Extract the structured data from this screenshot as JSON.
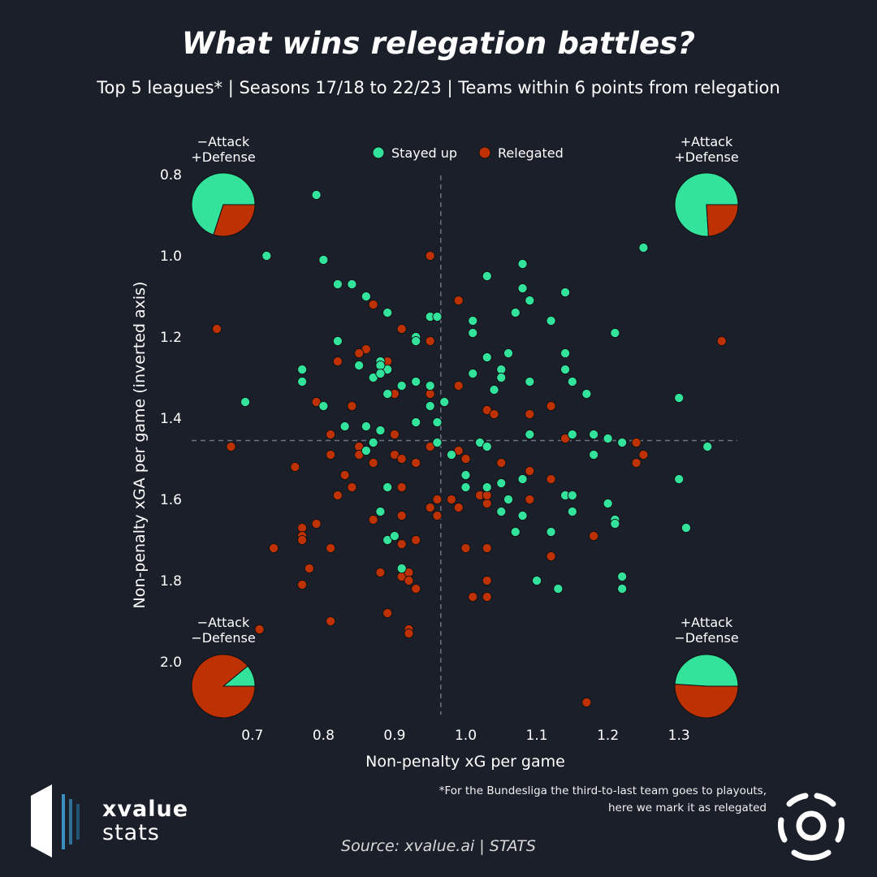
{
  "title": "What wins relegation battles?",
  "subtitle": "Top 5 leagues* | Seasons 17/18 to 22/23 | Teams within 6 points from relegation",
  "footnote_line1": "*For the Bundesliga the third-to-last team goes to playouts,",
  "footnote_line2": "here we mark it as relegated",
  "source": "Source: xvalue.ai | STATS",
  "brand": {
    "line1": "xvalue",
    "line2": "stats"
  },
  "colors": {
    "stayed": "#34e39b",
    "relegated": "#bd3102",
    "background": "#1a1f29"
  },
  "chart_data": {
    "type": "scatter",
    "xlabel": "Non-penalty xG per game",
    "ylabel": "Non-penalty xGA per game (inverted axis)",
    "xlim": [
      0.61,
      1.39
    ],
    "ylim": [
      2.15,
      0.78
    ],
    "y_inverted": true,
    "xticks": [
      0.7,
      0.8,
      0.9,
      1.0,
      1.1,
      1.2,
      1.3
    ],
    "xtick_labels": [
      "0.7",
      "0.8",
      "0.9",
      "1.0",
      "1.1",
      "1.2",
      "1.3"
    ],
    "yticks": [
      0.8,
      1.0,
      1.2,
      1.4,
      1.6,
      1.8,
      2.0
    ],
    "ytick_labels": [
      "0.8",
      "1.0",
      "1.2",
      "1.4",
      "1.6",
      "1.8",
      "2.0"
    ],
    "reference_lines": {
      "x": 0.965,
      "y": 1.455
    },
    "legend_position": "top-center",
    "series": [
      {
        "name": "Stayed up",
        "color": "#34e39b",
        "points": [
          [
            0.79,
            0.85
          ],
          [
            0.72,
            1.0
          ],
          [
            0.8,
            1.01
          ],
          [
            0.82,
            1.07
          ],
          [
            0.84,
            1.07
          ],
          [
            0.86,
            1.1
          ],
          [
            0.89,
            1.14
          ],
          [
            0.95,
            1.15
          ],
          [
            0.96,
            1.15
          ],
          [
            1.01,
            1.16
          ],
          [
            1.01,
            1.19
          ],
          [
            0.93,
            1.2
          ],
          [
            0.93,
            1.21
          ],
          [
            0.82,
            1.21
          ],
          [
            0.77,
            1.28
          ],
          [
            0.77,
            1.31
          ],
          [
            0.88,
            1.26
          ],
          [
            0.89,
            1.28
          ],
          [
            0.88,
            1.27
          ],
          [
            0.87,
            1.3
          ],
          [
            0.85,
            1.27
          ],
          [
            0.88,
            1.29
          ],
          [
            0.91,
            1.32
          ],
          [
            0.93,
            1.31
          ],
          [
            0.95,
            1.32
          ],
          [
            0.97,
            1.36
          ],
          [
            0.95,
            1.37
          ],
          [
            0.93,
            1.41
          ],
          [
            0.96,
            1.41
          ],
          [
            0.96,
            1.46
          ],
          [
            0.98,
            1.49
          ],
          [
            0.89,
            1.34
          ],
          [
            0.8,
            1.37
          ],
          [
            0.69,
            1.36
          ],
          [
            0.83,
            1.42
          ],
          [
            0.86,
            1.42
          ],
          [
            0.88,
            1.43
          ],
          [
            0.86,
            1.48
          ],
          [
            0.87,
            1.46
          ],
          [
            1.01,
            1.29
          ],
          [
            1.03,
            1.25
          ],
          [
            1.04,
            1.33
          ],
          [
            1.05,
            1.28
          ],
          [
            1.05,
            1.3
          ],
          [
            1.06,
            1.24
          ],
          [
            1.03,
            1.05
          ],
          [
            1.08,
            1.02
          ],
          [
            1.08,
            1.08
          ],
          [
            1.09,
            1.11
          ],
          [
            1.07,
            1.14
          ],
          [
            1.12,
            1.16
          ],
          [
            1.14,
            1.09
          ],
          [
            1.14,
            1.24
          ],
          [
            1.14,
            1.28
          ],
          [
            1.15,
            1.31
          ],
          [
            1.17,
            1.34
          ],
          [
            1.21,
            1.19
          ],
          [
            1.25,
            0.98
          ],
          [
            1.09,
            1.44
          ],
          [
            1.09,
            1.44
          ],
          [
            1.09,
            1.31
          ],
          [
            1.15,
            1.44
          ],
          [
            1.18,
            1.44
          ],
          [
            1.2,
            1.45
          ],
          [
            1.22,
            1.46
          ],
          [
            1.18,
            1.49
          ],
          [
            1.02,
            1.46
          ],
          [
            1.03,
            1.47
          ],
          [
            1.0,
            1.54
          ],
          [
            1.03,
            1.57
          ],
          [
            1.0,
            1.57
          ],
          [
            1.05,
            1.56
          ],
          [
            1.08,
            1.55
          ],
          [
            1.06,
            1.6
          ],
          [
            1.05,
            1.63
          ],
          [
            1.08,
            1.64
          ],
          [
            1.14,
            1.59
          ],
          [
            1.15,
            1.59
          ],
          [
            1.15,
            1.63
          ],
          [
            1.2,
            1.61
          ],
          [
            1.21,
            1.65
          ],
          [
            1.21,
            1.66
          ],
          [
            1.12,
            1.68
          ],
          [
            1.07,
            1.68
          ],
          [
            1.1,
            1.8
          ],
          [
            1.13,
            1.82
          ],
          [
            1.22,
            1.79
          ],
          [
            1.22,
            1.82
          ],
          [
            0.89,
            1.57
          ],
          [
            0.88,
            1.63
          ],
          [
            0.89,
            1.7
          ],
          [
            0.9,
            1.69
          ],
          [
            0.91,
            1.77
          ],
          [
            1.3,
            1.35
          ],
          [
            1.34,
            1.47
          ],
          [
            1.3,
            1.55
          ],
          [
            1.31,
            1.67
          ]
        ]
      },
      {
        "name": "Relegated",
        "color": "#bd3102",
        "points": [
          [
            0.65,
            1.18
          ],
          [
            0.67,
            1.47
          ],
          [
            0.95,
            1.0
          ],
          [
            0.99,
            1.11
          ],
          [
            0.87,
            1.12
          ],
          [
            0.91,
            1.18
          ],
          [
            0.95,
            1.21
          ],
          [
            0.86,
            1.23
          ],
          [
            0.85,
            1.24
          ],
          [
            0.82,
            1.26
          ],
          [
            0.89,
            1.26
          ],
          [
            0.9,
            1.34
          ],
          [
            0.95,
            1.34
          ],
          [
            0.99,
            1.32
          ],
          [
            0.79,
            1.36
          ],
          [
            0.84,
            1.37
          ],
          [
            0.81,
            1.44
          ],
          [
            0.85,
            1.47
          ],
          [
            0.9,
            1.44
          ],
          [
            0.95,
            1.47
          ],
          [
            0.9,
            1.49
          ],
          [
            0.91,
            1.5
          ],
          [
            0.93,
            1.51
          ],
          [
            0.99,
            1.48
          ],
          [
            1.0,
            1.5
          ],
          [
            0.85,
            1.49
          ],
          [
            0.87,
            1.51
          ],
          [
            0.81,
            1.49
          ],
          [
            0.76,
            1.52
          ],
          [
            0.83,
            1.54
          ],
          [
            0.84,
            1.57
          ],
          [
            0.82,
            1.59
          ],
          [
            0.91,
            1.57
          ],
          [
            1.02,
            1.59
          ],
          [
            1.03,
            1.61
          ],
          [
            1.03,
            1.59
          ],
          [
            1.05,
            1.51
          ],
          [
            1.09,
            1.39
          ],
          [
            1.12,
            1.37
          ],
          [
            1.14,
            1.45
          ],
          [
            1.24,
            1.46
          ],
          [
            1.25,
            1.49
          ],
          [
            1.24,
            1.51
          ],
          [
            1.09,
            1.53
          ],
          [
            1.12,
            1.55
          ],
          [
            1.09,
            1.6
          ],
          [
            1.07,
            1.68
          ],
          [
            0.99,
            1.62
          ],
          [
            0.96,
            1.6
          ],
          [
            0.98,
            1.6
          ],
          [
            0.87,
            1.65
          ],
          [
            0.91,
            1.64
          ],
          [
            0.89,
            1.7
          ],
          [
            0.91,
            1.71
          ],
          [
            0.93,
            1.7
          ],
          [
            0.95,
            1.62
          ],
          [
            0.96,
            1.64
          ],
          [
            0.81,
            1.72
          ],
          [
            0.79,
            1.66
          ],
          [
            0.77,
            1.67
          ],
          [
            0.77,
            1.69
          ],
          [
            0.77,
            1.7
          ],
          [
            0.73,
            1.72
          ],
          [
            0.78,
            1.77
          ],
          [
            0.77,
            1.81
          ],
          [
            0.88,
            1.78
          ],
          [
            0.91,
            1.79
          ],
          [
            0.92,
            1.78
          ],
          [
            0.92,
            1.8
          ],
          [
            0.93,
            1.82
          ],
          [
            1.0,
            1.72
          ],
          [
            1.03,
            1.72
          ],
          [
            1.03,
            1.8
          ],
          [
            1.03,
            1.84
          ],
          [
            1.01,
            1.84
          ],
          [
            1.12,
            1.74
          ],
          [
            1.18,
            1.69
          ],
          [
            0.89,
            1.88
          ],
          [
            0.81,
            1.9
          ],
          [
            0.92,
            1.92
          ],
          [
            0.92,
            1.93
          ],
          [
            0.71,
            1.92
          ],
          [
            1.17,
            2.1
          ],
          [
            1.36,
            1.21
          ],
          [
            1.03,
            1.38
          ],
          [
            1.04,
            1.39
          ]
        ]
      }
    ],
    "quadrants": [
      {
        "id": "top-left",
        "label_line1": "−Attack",
        "label_line2": "+Defense",
        "stayed_share": 0.7,
        "relegated_share": 0.3
      },
      {
        "id": "top-right",
        "label_line1": "+Attack",
        "label_line2": "+Defense",
        "stayed_share": 0.76,
        "relegated_share": 0.24
      },
      {
        "id": "bottom-left",
        "label_line1": "−Attack",
        "label_line2": "−Defense",
        "stayed_share": 0.11,
        "relegated_share": 0.89
      },
      {
        "id": "bottom-right",
        "label_line1": "+Attack",
        "label_line2": "−Defense",
        "stayed_share": 0.49,
        "relegated_share": 0.51
      }
    ]
  }
}
